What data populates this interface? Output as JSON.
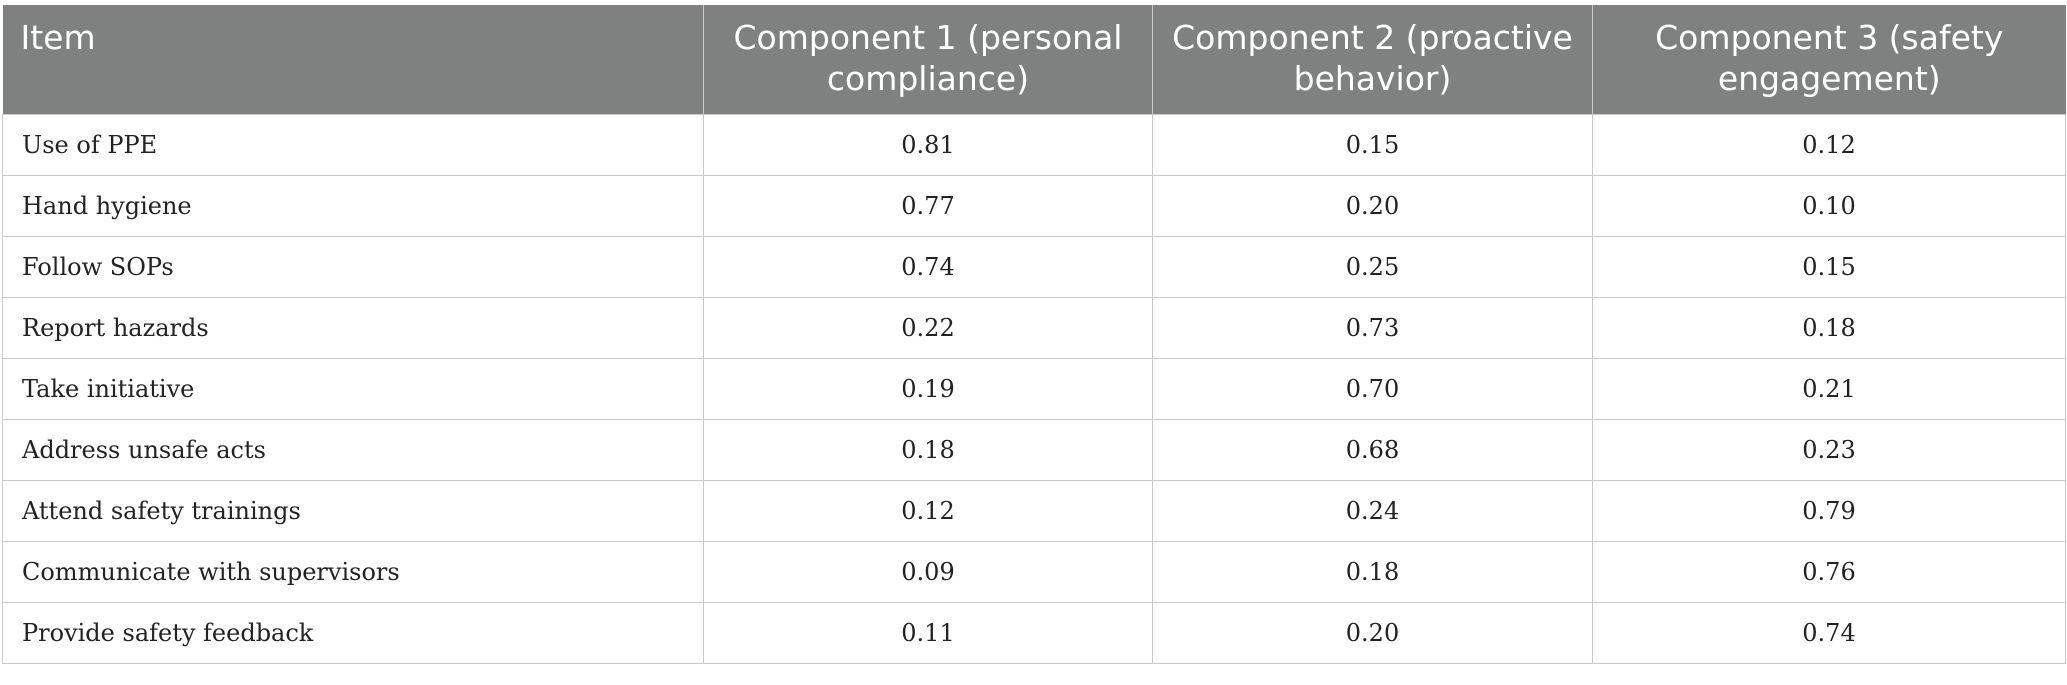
{
  "table": {
    "headers": [
      "Item",
      "Component 1 (personal compliance)",
      "Component 2 (proactive behavior)",
      "Component 3 (safety engagement)"
    ],
    "rows": [
      {
        "item": "Use of PPE",
        "c1": "0.81",
        "c2": "0.15",
        "c3": "0.12"
      },
      {
        "item": "Hand hygiene",
        "c1": "0.77",
        "c2": "0.20",
        "c3": "0.10"
      },
      {
        "item": "Follow SOPs",
        "c1": "0.74",
        "c2": "0.25",
        "c3": "0.15"
      },
      {
        "item": "Report hazards",
        "c1": "0.22",
        "c2": "0.73",
        "c3": "0.18"
      },
      {
        "item": "Take initiative",
        "c1": "0.19",
        "c2": "0.70",
        "c3": "0.21"
      },
      {
        "item": "Address unsafe acts",
        "c1": "0.18",
        "c2": "0.68",
        "c3": "0.23"
      },
      {
        "item": "Attend safety trainings",
        "c1": "0.12",
        "c2": "0.24",
        "c3": "0.79"
      },
      {
        "item": "Communicate with supervisors",
        "c1": "0.09",
        "c2": "0.18",
        "c3": "0.76"
      },
      {
        "item": "Provide safety feedback",
        "c1": "0.11",
        "c2": "0.20",
        "c3": "0.74"
      }
    ]
  },
  "colors": {
    "header_bg": "#7f8180",
    "header_text": "#ffffff",
    "grid": "#c9c9c9"
  }
}
